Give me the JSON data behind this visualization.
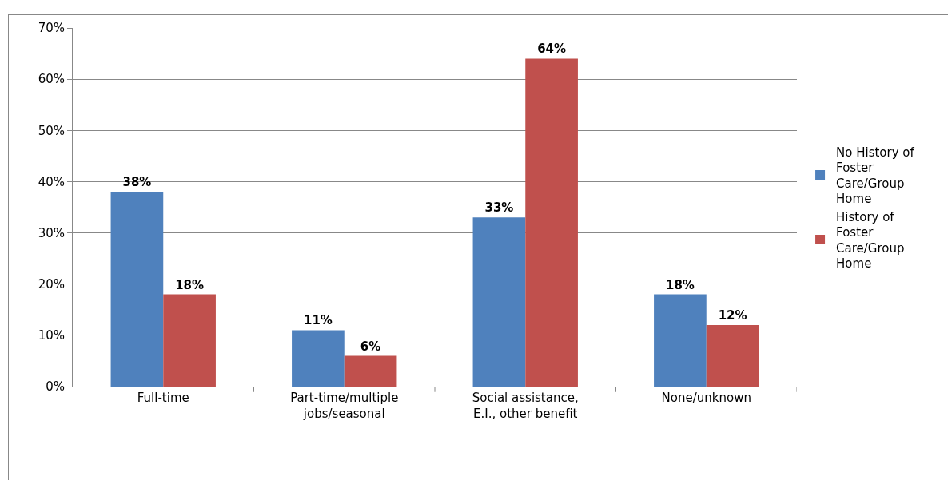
{
  "chart_data": {
    "type": "bar",
    "categories": [
      "Full-time",
      "Part-time/multiple jobs/seasonal",
      "Social assistance, E.I., other benefit",
      "None/unknown"
    ],
    "series": [
      {
        "name": "No History of Foster Care/Group Home",
        "color": "#4f81bd",
        "values": [
          38,
          11,
          33,
          18
        ],
        "value_labels": [
          "38%",
          "11%",
          "33%",
          "18%"
        ]
      },
      {
        "name": "History of Foster Care/Group Home",
        "color": "#c0504d",
        "values": [
          18,
          6,
          64,
          12
        ],
        "value_labels": [
          "18%",
          "6%",
          "64%",
          "12%"
        ]
      }
    ],
    "ylim": [
      0,
      70
    ],
    "yticks": [
      {
        "value": 0,
        "label": "0%"
      },
      {
        "value": 10,
        "label": "10%"
      },
      {
        "value": 20,
        "label": "20%"
      },
      {
        "value": 30,
        "label": "30%"
      },
      {
        "value": 40,
        "label": "40%"
      },
      {
        "value": 50,
        "label": "50%"
      },
      {
        "value": 60,
        "label": "60%"
      },
      {
        "value": 70,
        "label": "70%"
      }
    ],
    "grid": "y",
    "legend": "right"
  }
}
